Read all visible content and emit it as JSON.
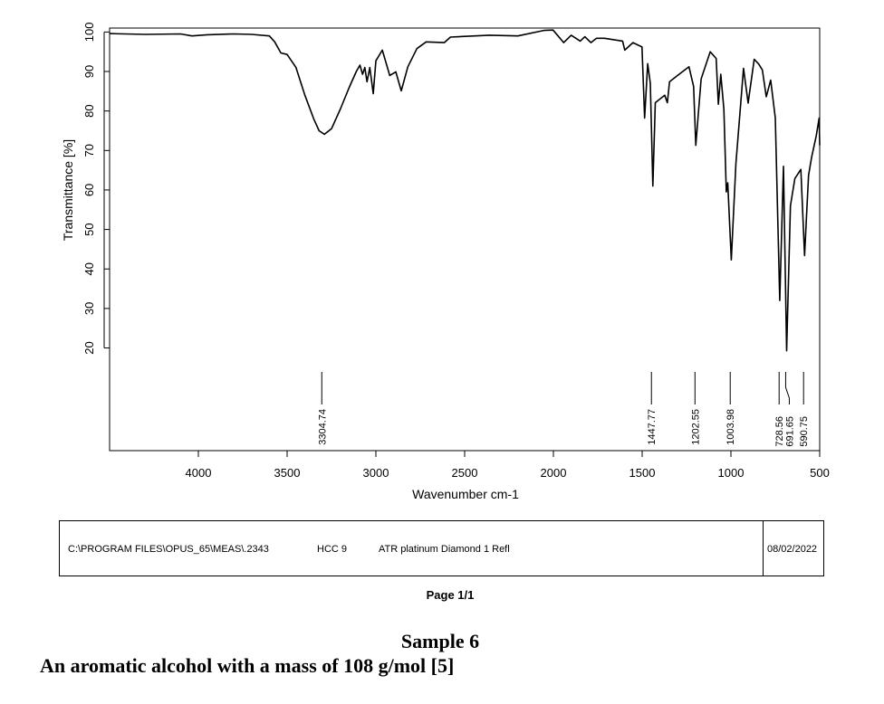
{
  "chart_data": {
    "type": "line",
    "title": "",
    "xlabel": "Wavenumber cm-1",
    "ylabel": "Transmittance [%]",
    "xlim": [
      4500,
      500
    ],
    "ylim": [
      -6,
      101
    ],
    "x_reversed": true,
    "grid": false,
    "xticks": [
      4000,
      3500,
      3000,
      2500,
      2000,
      1500,
      1000,
      500
    ],
    "yticks": [
      20,
      30,
      40,
      50,
      60,
      70,
      80,
      90,
      100
    ],
    "line_color": "#000000",
    "series": [
      {
        "x": [
          4500,
          4300,
          4100,
          4036,
          3950,
          3800,
          3700,
          3600,
          3570,
          3535,
          3500,
          3450,
          3400,
          3350,
          3320,
          3290,
          3250,
          3200,
          3150,
          3110,
          3090,
          3075,
          3062,
          3050,
          3034,
          3015,
          3000,
          2964,
          2922,
          2888,
          2857,
          2820,
          2769,
          2717,
          2615,
          2580,
          2360,
          2200,
          2053,
          2002,
          1942,
          1900,
          1849,
          1823,
          1789,
          1757,
          1712,
          1610,
          1598,
          1552,
          1501,
          1486,
          1469,
          1454,
          1440,
          1426,
          1373,
          1358,
          1346,
          1303,
          1236,
          1210,
          1198,
          1168,
          1117,
          1083,
          1071,
          1057,
          1040,
          1026,
          1018,
          998,
          972,
          929,
          903,
          869,
          844,
          823,
          801,
          776,
          750,
          725,
          704,
          686,
          665,
          640,
          606,
          585,
          563,
          546,
          520,
          503,
          500
        ],
        "y": [
          99.6,
          99.4,
          99.5,
          99.0,
          99.3,
          99.5,
          99.4,
          99.0,
          97.5,
          94.7,
          94.3,
          91.0,
          84.0,
          78.0,
          75.0,
          74.1,
          75.5,
          80.5,
          86.0,
          90.0,
          91.6,
          89.3,
          91.0,
          87.4,
          91.0,
          84.4,
          92.7,
          95.4,
          89.0,
          89.9,
          85.1,
          91.2,
          95.8,
          97.5,
          97.3,
          98.7,
          99.2,
          99.0,
          100.4,
          100.5,
          97.3,
          99.2,
          97.7,
          98.8,
          97.3,
          98.4,
          98.4,
          97.7,
          95.4,
          97.3,
          96.2,
          78.2,
          92.0,
          87.0,
          61.0,
          82.1,
          84.0,
          82.1,
          87.4,
          88.9,
          91.2,
          86.2,
          71.3,
          88.1,
          95.0,
          93.3,
          81.7,
          89.3,
          80.5,
          59.5,
          61.8,
          42.3,
          66.7,
          90.8,
          82.0,
          93.1,
          91.9,
          90.4,
          83.6,
          87.8,
          78.2,
          32.0,
          66.0,
          19.3,
          56.0,
          62.9,
          65.2,
          43.4,
          63.7,
          68.2,
          73.6,
          78.2,
          71.3
        ]
      }
    ],
    "peak_labels": [
      "3304.74",
      "1447.77",
      "1202.55",
      "1003.98",
      "728.56",
      "691.65",
      "590.75"
    ]
  },
  "footer": {
    "path": "C:\\PROGRAM FILES\\OPUS_65\\MEAS\\.2343",
    "sample_id": "HCC 9",
    "method": "ATR platinum Diamond 1 Refl",
    "date": "08/02/2022"
  },
  "page": "Page 1/1",
  "caption": {
    "title": "Sample 6",
    "description": "An aromatic alcohol with a mass of 108 g/mol [5]"
  }
}
